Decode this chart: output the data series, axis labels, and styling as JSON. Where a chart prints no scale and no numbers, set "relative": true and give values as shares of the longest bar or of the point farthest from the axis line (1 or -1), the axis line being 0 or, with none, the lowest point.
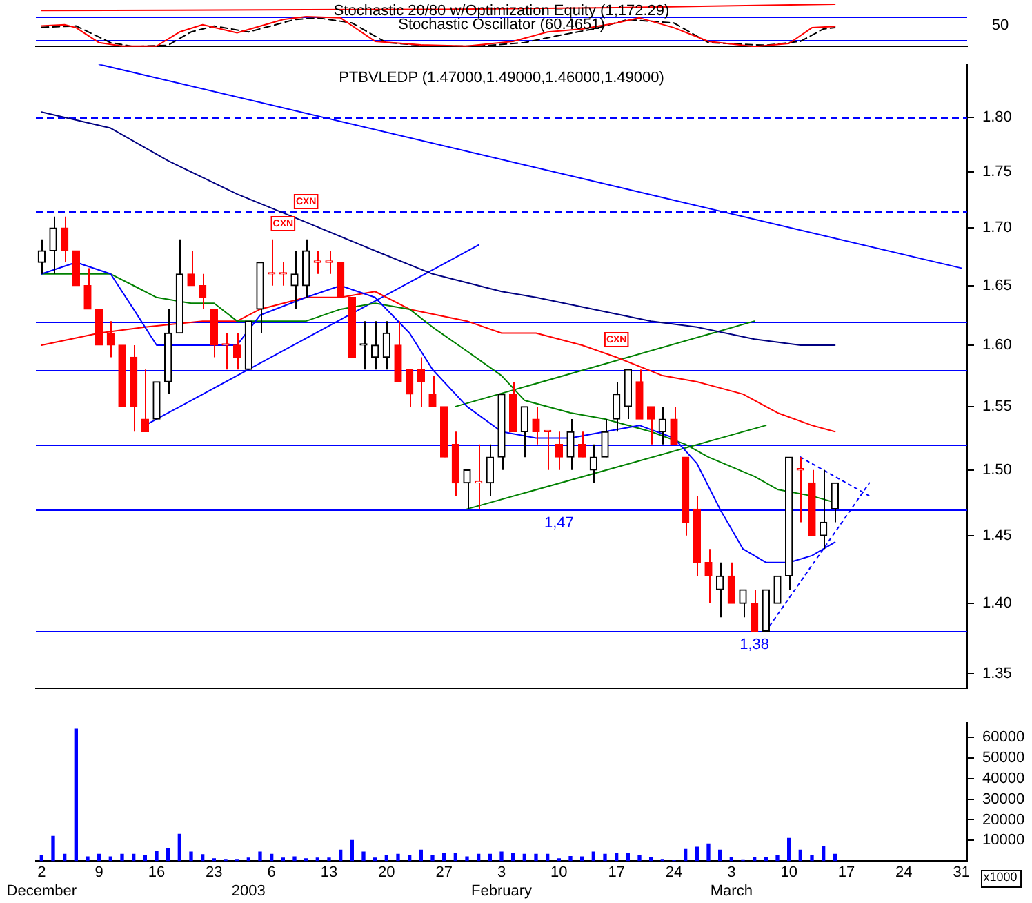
{
  "chart_data": [
    {
      "type": "line",
      "relative": true,
      "tick_labels": false,
      "title": "Stochastic 20/80 w/Optimization Equity (1,172.29)",
      "subtitle": "Stochastic Oscillator (60.4651)",
      "categories": [
        null,
        null,
        null,
        null,
        null,
        null,
        null,
        null,
        null,
        null,
        null,
        null,
        null,
        null,
        null,
        null,
        null,
        null,
        null,
        null,
        null,
        null,
        null,
        null,
        null,
        null,
        null,
        null,
        null,
        null,
        null,
        null,
        null,
        null,
        null,
        null,
        null,
        null,
        null,
        null,
        null,
        null,
        null,
        null,
        null,
        null,
        null,
        null,
        null,
        null,
        null,
        null,
        null,
        null,
        null,
        null,
        null,
        null,
        null,
        null,
        null,
        null,
        null,
        null,
        null,
        null,
        null,
        null,
        null,
        null,
        null,
        null,
        null,
        null,
        null,
        null,
        null,
        null,
        null,
        null,
        null
      ],
      "series": [
        {
          "color": "#ff0000",
          "values": [
            0.49,
            null,
            0.52,
            0.45,
            null,
            0.1,
            null,
            0.02,
            null,
            null,
            0.02,
            null,
            0.35,
            null,
            0.52,
            null,
            null,
            0.33,
            null,
            null,
            null,
            0.64,
            null,
            0.71,
            null,
            null,
            0.68,
            null,
            null,
            0.13,
            null,
            null,
            null,
            0.05,
            null,
            null,
            null,
            0.02,
            null,
            null,
            null,
            0.13,
            null,
            null,
            0.35,
            null,
            null,
            0.42,
            null,
            null,
            0.56,
            null,
            0.68,
            null,
            null,
            0.45,
            null,
            null,
            0.13,
            null,
            null,
            null,
            0.01,
            null,
            null,
            0.08,
            null,
            0.45,
            null,
            0.48,
            null,
            null,
            null,
            null,
            null,
            null,
            null,
            null,
            null,
            null,
            null
          ]
        },
        {
          "color": "#000000",
          "line_style": "dashed",
          "values": [
            0.46,
            null,
            null,
            0.49,
            null,
            null,
            0.1,
            null,
            0.01,
            null,
            null,
            0.04,
            null,
            0.35,
            null,
            0.49,
            null,
            null,
            0.35,
            null,
            null,
            null,
            0.64,
            null,
            0.68,
            null,
            null,
            0.56,
            null,
            null,
            0.1,
            null,
            null,
            null,
            0.02,
            null,
            null,
            null,
            0.02,
            null,
            null,
            null,
            0.1,
            null,
            null,
            0.27,
            null,
            null,
            0.42,
            null,
            null,
            0.64,
            null,
            null,
            null,
            0.56,
            null,
            null,
            0.1,
            null,
            null,
            null,
            null,
            0.04,
            null,
            null,
            0.13,
            null,
            0.42,
            0.45,
            null,
            null,
            null,
            null,
            null,
            null,
            null,
            null,
            null,
            null,
            null
          ]
        },
        {
          "color": "#ff0000",
          "values": [
            0.85,
            null,
            null,
            null,
            null,
            null,
            null,
            null,
            null,
            null,
            null,
            null,
            null,
            null,
            null,
            null,
            null,
            null,
            null,
            null,
            null,
            null,
            null,
            null,
            null,
            null,
            null,
            null,
            null,
            null,
            null,
            null,
            null,
            null,
            null,
            0.88,
            null,
            null,
            null,
            null,
            null,
            null,
            null,
            null,
            null,
            null,
            null,
            null,
            null,
            null,
            0.92,
            null,
            null,
            null,
            null,
            null,
            null,
            null,
            null,
            null,
            null,
            null,
            null,
            null,
            null,
            null,
            null,
            null,
            null,
            1,
            null,
            null,
            null,
            null,
            null,
            null,
            null,
            null,
            null,
            null,
            null
          ]
        }
      ],
      "ref_lines": [
        {
          "axis": "y",
          "value": 0.7,
          "color": "#0000ff"
        },
        {
          "axis": "y",
          "value": 0.15,
          "color": "#0000ff"
        }
      ],
      "annotations": [
        "50"
      ]
    },
    {
      "type": "candlestick",
      "title": "PTBVLEDP (1.47000,1.49000,1.46000,1.49000)",
      "log": true,
      "tick_labels": "y",
      "categories": [
        null,
        null,
        null,
        null,
        null,
        null,
        null,
        null,
        null,
        null,
        null,
        null,
        null,
        null,
        null,
        null,
        null,
        null,
        null,
        null,
        null,
        null,
        null,
        null,
        null,
        null,
        null,
        null,
        null,
        null,
        null,
        null,
        null,
        null,
        null,
        null,
        null,
        null,
        null,
        null,
        null,
        null,
        null,
        null,
        null,
        null,
        null,
        null,
        null,
        null,
        null,
        null,
        null,
        null,
        null,
        null,
        null,
        null,
        null,
        null,
        null,
        null,
        null,
        null,
        null,
        null,
        null,
        null,
        null,
        null,
        null,
        null,
        null,
        null,
        null,
        null,
        null,
        null,
        null,
        null,
        null
      ],
      "ohlc": [
        [
          1.67,
          1.69,
          1.66,
          1.68
        ],
        [
          1.68,
          1.71,
          1.66,
          1.7
        ],
        [
          1.7,
          1.71,
          1.67,
          1.68
        ],
        [
          1.68,
          1.68,
          1.65,
          1.65
        ],
        [
          1.65,
          1.665,
          1.63,
          1.63
        ],
        [
          1.63,
          1.63,
          1.6,
          1.6
        ],
        [
          1.61,
          1.62,
          1.59,
          1.6
        ],
        [
          1.6,
          1.6,
          1.55,
          1.55
        ],
        [
          1.59,
          1.6,
          1.53,
          1.55
        ],
        [
          1.54,
          1.58,
          1.53,
          1.53
        ],
        [
          1.54,
          1.57,
          1.54,
          1.57
        ],
        [
          1.57,
          1.63,
          1.56,
          1.61
        ],
        [
          1.61,
          1.69,
          1.61,
          1.66
        ],
        [
          1.66,
          1.68,
          1.65,
          1.65
        ],
        [
          1.65,
          1.66,
          1.63,
          1.64
        ],
        [
          1.63,
          1.63,
          1.59,
          1.6
        ],
        [
          1.6,
          1.61,
          1.58,
          1.6
        ],
        [
          1.6,
          1.61,
          1.58,
          1.59
        ],
        [
          1.58,
          1.62,
          1.58,
          1.62
        ],
        [
          1.63,
          1.67,
          1.61,
          1.67
        ],
        [
          1.66,
          1.69,
          1.65,
          1.66
        ],
        [
          1.66,
          1.67,
          1.65,
          1.66
        ],
        [
          1.65,
          1.68,
          1.63,
          1.66
        ],
        [
          1.65,
          1.69,
          1.64,
          1.68
        ],
        [
          1.67,
          1.68,
          1.66,
          1.67
        ],
        [
          1.67,
          1.68,
          1.66,
          1.67
        ],
        [
          1.67,
          1.67,
          1.64,
          1.64
        ],
        [
          1.64,
          1.64,
          1.59,
          1.59
        ],
        [
          1.6,
          1.62,
          1.58,
          1.6
        ],
        [
          1.59,
          1.62,
          1.58,
          1.6
        ],
        [
          1.59,
          1.62,
          1.58,
          1.61
        ],
        [
          1.6,
          1.62,
          1.57,
          1.57
        ],
        [
          1.58,
          1.58,
          1.55,
          1.56
        ],
        [
          1.58,
          1.59,
          1.55,
          1.57
        ],
        [
          1.56,
          1.575,
          1.55,
          1.55
        ],
        [
          1.55,
          1.55,
          1.51,
          1.51
        ],
        [
          1.52,
          1.53,
          1.48,
          1.49
        ],
        [
          1.49,
          1.5,
          1.47,
          1.5
        ],
        [
          1.49,
          1.52,
          1.47,
          1.49
        ],
        [
          1.49,
          1.52,
          1.48,
          1.51
        ],
        [
          1.51,
          1.56,
          1.5,
          1.56
        ],
        [
          1.56,
          1.57,
          1.53,
          1.53
        ],
        [
          1.53,
          1.55,
          1.51,
          1.55
        ],
        [
          1.54,
          1.55,
          1.52,
          1.53
        ],
        [
          1.53,
          1.53,
          1.5,
          1.53
        ],
        [
          1.52,
          1.53,
          1.5,
          1.51
        ],
        [
          1.51,
          1.54,
          1.5,
          1.53
        ],
        [
          1.52,
          1.53,
          1.51,
          1.51
        ],
        [
          1.5,
          1.52,
          1.49,
          1.51
        ],
        [
          1.51,
          1.54,
          1.51,
          1.53
        ],
        [
          1.54,
          1.57,
          1.53,
          1.56
        ],
        [
          1.55,
          1.58,
          1.54,
          1.58
        ],
        [
          1.57,
          1.58,
          1.54,
          1.54
        ],
        [
          1.55,
          1.55,
          1.52,
          1.54
        ],
        [
          1.53,
          1.55,
          1.52,
          1.54
        ],
        [
          1.54,
          1.55,
          1.52,
          1.52
        ],
        [
          1.51,
          1.51,
          1.45,
          1.46
        ],
        [
          1.47,
          1.48,
          1.42,
          1.43
        ],
        [
          1.43,
          1.44,
          1.4,
          1.42
        ],
        [
          1.41,
          1.43,
          1.39,
          1.42
        ],
        [
          1.42,
          1.43,
          1.4,
          1.4
        ],
        [
          1.4,
          1.41,
          1.39,
          1.41
        ],
        [
          1.4,
          1.41,
          1.38,
          1.38
        ],
        [
          1.38,
          1.41,
          1.38,
          1.41
        ],
        [
          1.4,
          1.42,
          1.4,
          1.42
        ],
        [
          1.42,
          1.51,
          1.41,
          1.51
        ],
        [
          1.5,
          1.51,
          1.46,
          1.5
        ],
        [
          1.49,
          1.5,
          1.45,
          1.45
        ],
        [
          1.45,
          1.5,
          1.44,
          1.46
        ],
        [
          1.47,
          1.49,
          1.46,
          1.49
        ],
        null,
        null,
        null,
        null,
        null,
        null,
        null,
        null,
        null,
        null,
        null
      ],
      "colors": [
        "#000000",
        "#000000",
        "#ff0000",
        "#ff0000",
        "#ff0000",
        "#ff0000",
        "#ff0000",
        "#ff0000",
        "#ff0000",
        "#ff0000",
        "#000000",
        "#000000",
        "#000000",
        "#ff0000",
        "#ff0000",
        "#ff0000",
        "#ff0000",
        "#ff0000",
        "#000000",
        "#000000",
        "#ff0000",
        "#ff0000",
        "#000000",
        "#000000",
        "#ff0000",
        "#ff0000",
        "#ff0000",
        "#ff0000",
        "#000000",
        "#000000",
        "#000000",
        "#ff0000",
        "#ff0000",
        "#ff0000",
        "#ff0000",
        "#ff0000",
        "#ff0000",
        "#000000",
        "#ff0000",
        "#000000",
        "#000000",
        "#ff0000",
        "#000000",
        "#ff0000",
        "#ff0000",
        "#ff0000",
        "#000000",
        "#ff0000",
        "#000000",
        "#000000",
        "#000000",
        "#000000",
        "#ff0000",
        "#ff0000",
        "#000000",
        "#ff0000",
        "#ff0000",
        "#ff0000",
        "#ff0000",
        "#000000",
        "#ff0000",
        "#000000",
        "#ff0000",
        "#000000",
        "#000000",
        "#000000",
        "#ff0000",
        "#ff0000",
        "#000000",
        "#000000",
        null,
        null,
        null,
        null,
        null,
        null,
        null,
        null,
        null,
        null,
        null
      ],
      "series": [
        {
          "type": "line",
          "color": "#0000ff",
          "values": [
            1.66,
            null,
            null,
            1.67,
            null,
            null,
            1.66,
            null,
            1.63,
            null,
            1.6,
            null,
            null,
            1.6,
            null,
            null,
            null,
            1.6,
            null,
            1.625,
            null,
            null,
            null,
            1.64,
            null,
            null,
            1.65,
            null,
            null,
            1.64,
            null,
            null,
            1.61,
            null,
            1.58,
            null,
            null,
            1.55,
            null,
            null,
            1.53,
            null,
            null,
            1.525,
            null,
            null,
            1.525,
            null,
            null,
            1.53,
            null,
            null,
            1.535,
            null,
            null,
            1.525,
            null,
            1.505,
            null,
            1.47,
            null,
            1.44,
            null,
            1.43,
            null,
            1.43,
            null,
            1.435,
            null,
            1.445,
            null,
            null,
            null,
            null,
            null,
            null,
            null,
            null,
            null,
            null,
            null
          ]
        },
        {
          "type": "line",
          "color": "#008000",
          "values": [
            1.66,
            null,
            null,
            1.66,
            null,
            null,
            1.66,
            null,
            1.65,
            null,
            1.64,
            null,
            null,
            1.635,
            null,
            1.635,
            null,
            1.62,
            null,
            1.62,
            null,
            null,
            null,
            1.62,
            null,
            null,
            1.63,
            null,
            null,
            1.635,
            null,
            null,
            1.63,
            null,
            1.615,
            null,
            null,
            1.595,
            null,
            null,
            1.575,
            null,
            1.555,
            null,
            null,
            null,
            1.545,
            null,
            null,
            1.54,
            null,
            null,
            null,
            1.53,
            null,
            null,
            1.52,
            null,
            1.51,
            null,
            null,
            null,
            1.495,
            null,
            1.485,
            null,
            null,
            1.48,
            null,
            1.475,
            null,
            null,
            null,
            null,
            null,
            null,
            null,
            null,
            null,
            null,
            null
          ]
        },
        {
          "type": "line",
          "color": "#ff0000",
          "values": [
            1.6,
            null,
            null,
            null,
            null,
            1.61,
            null,
            null,
            null,
            1.615,
            null,
            null,
            null,
            null,
            1.62,
            null,
            null,
            1.62,
            null,
            1.63,
            null,
            null,
            null,
            1.64,
            null,
            null,
            1.64,
            null,
            null,
            1.645,
            null,
            null,
            1.63,
            null,
            null,
            null,
            null,
            1.62,
            null,
            null,
            1.61,
            null,
            null,
            1.61,
            null,
            null,
            null,
            1.6,
            null,
            null,
            1.59,
            null,
            null,
            null,
            1.575,
            null,
            null,
            1.57,
            null,
            null,
            null,
            1.56,
            null,
            null,
            1.545,
            null,
            null,
            1.535,
            null,
            1.53,
            null,
            null,
            null,
            null,
            null,
            null,
            null,
            null,
            null,
            null,
            null
          ]
        },
        {
          "type": "line",
          "color": "#000080",
          "values": [
            1.805,
            null,
            null,
            null,
            null,
            null,
            1.79,
            null,
            null,
            null,
            null,
            1.76,
            null,
            null,
            null,
            null,
            null,
            1.73,
            null,
            null,
            null,
            null,
            null,
            1.705,
            null,
            null,
            null,
            null,
            null,
            1.68,
            null,
            null,
            null,
            null,
            1.66,
            null,
            null,
            null,
            null,
            null,
            1.645,
            null,
            null,
            1.64,
            null,
            null,
            null,
            null,
            1.63,
            null,
            null,
            null,
            null,
            1.62,
            null,
            null,
            null,
            1.615,
            null,
            null,
            null,
            null,
            1.605,
            null,
            null,
            null,
            1.6,
            null,
            null,
            1.6,
            null,
            null,
            null,
            null,
            null,
            null,
            null,
            null,
            null,
            null,
            null
          ]
        },
        {
          "type": "line",
          "color": "#0000ff",
          "values": [
            null,
            null,
            null,
            null,
            null,
            1.85,
            null,
            null,
            null,
            null,
            null,
            null,
            null,
            null,
            null,
            null,
            null,
            null,
            null,
            null,
            null,
            null,
            null,
            null,
            null,
            null,
            null,
            null,
            null,
            null,
            null,
            null,
            null,
            null,
            null,
            null,
            null,
            null,
            null,
            null,
            null,
            null,
            null,
            null,
            null,
            null,
            null,
            null,
            null,
            null,
            null,
            null,
            null,
            null,
            null,
            null,
            null,
            null,
            null,
            null,
            null,
            null,
            null,
            null,
            null,
            null,
            null,
            null,
            null,
            null,
            null,
            null,
            null,
            null,
            null,
            null,
            null,
            null,
            null,
            null,
            1.665
          ]
        },
        {
          "type": "line",
          "color": "#0000ff",
          "values": [
            null,
            null,
            null,
            null,
            null,
            null,
            null,
            null,
            null,
            1.535,
            null,
            null,
            null,
            null,
            null,
            null,
            null,
            null,
            null,
            null,
            null,
            null,
            null,
            null,
            null,
            null,
            null,
            null,
            null,
            null,
            null,
            null,
            null,
            null,
            null,
            null,
            null,
            null,
            1.685,
            null,
            null,
            null,
            null,
            null,
            null,
            null,
            null,
            null,
            null,
            null,
            null,
            null,
            null,
            null,
            null,
            null,
            null,
            null,
            null,
            null,
            null,
            null,
            null,
            null,
            null,
            null,
            null,
            null,
            null,
            null,
            null,
            null,
            null,
            null,
            null,
            null,
            null,
            null,
            null,
            null,
            null
          ]
        },
        {
          "type": "line",
          "color": "#008000",
          "values": [
            null,
            null,
            null,
            null,
            null,
            null,
            null,
            null,
            null,
            null,
            null,
            null,
            null,
            null,
            null,
            null,
            null,
            null,
            null,
            null,
            null,
            null,
            null,
            null,
            null,
            null,
            null,
            null,
            null,
            null,
            null,
            null,
            null,
            null,
            null,
            null,
            1.55,
            null,
            null,
            null,
            null,
            null,
            null,
            null,
            null,
            null,
            null,
            null,
            null,
            null,
            null,
            null,
            null,
            null,
            null,
            null,
            null,
            null,
            null,
            null,
            null,
            null,
            1.62,
            null,
            null,
            null,
            null,
            null,
            null,
            null,
            null,
            null,
            null,
            null,
            null,
            null,
            null,
            null,
            null,
            null,
            null
          ]
        },
        {
          "type": "line",
          "color": "#008000",
          "values": [
            null,
            null,
            null,
            null,
            null,
            null,
            null,
            null,
            null,
            null,
            null,
            null,
            null,
            null,
            null,
            null,
            null,
            null,
            null,
            null,
            null,
            null,
            null,
            null,
            null,
            null,
            null,
            null,
            null,
            null,
            null,
            null,
            null,
            null,
            null,
            null,
            null,
            1.47,
            null,
            null,
            null,
            null,
            null,
            null,
            null,
            null,
            null,
            null,
            null,
            null,
            null,
            null,
            null,
            null,
            null,
            null,
            null,
            null,
            null,
            null,
            null,
            null,
            null,
            1.535,
            null,
            null,
            null,
            null,
            null,
            null,
            null,
            null,
            null,
            null,
            null,
            null,
            null,
            null,
            null,
            null,
            null
          ]
        },
        {
          "type": "line",
          "color": "#0000ff",
          "line_style": "dotted",
          "values": [
            null,
            null,
            null,
            null,
            null,
            null,
            null,
            null,
            null,
            null,
            null,
            null,
            null,
            null,
            null,
            null,
            null,
            null,
            null,
            null,
            null,
            null,
            null,
            null,
            null,
            null,
            null,
            null,
            null,
            null,
            null,
            null,
            null,
            null,
            null,
            null,
            null,
            null,
            null,
            null,
            null,
            null,
            null,
            null,
            null,
            null,
            null,
            null,
            null,
            null,
            null,
            null,
            null,
            null,
            null,
            null,
            null,
            null,
            null,
            null,
            null,
            null,
            null,
            1.38,
            null,
            null,
            null,
            null,
            null,
            null,
            null,
            null,
            1.49,
            null,
            null,
            null,
            null,
            null,
            null,
            null,
            null
          ]
        },
        {
          "type": "line",
          "color": "#0000ff",
          "line_style": "dotted",
          "values": [
            null,
            null,
            null,
            null,
            null,
            null,
            null,
            null,
            null,
            null,
            null,
            null,
            null,
            null,
            null,
            null,
            null,
            null,
            null,
            null,
            null,
            null,
            null,
            null,
            null,
            null,
            null,
            null,
            null,
            null,
            null,
            null,
            null,
            null,
            null,
            null,
            null,
            null,
            null,
            null,
            null,
            null,
            null,
            null,
            null,
            null,
            null,
            null,
            null,
            null,
            null,
            null,
            null,
            null,
            null,
            null,
            null,
            null,
            null,
            null,
            null,
            null,
            null,
            null,
            null,
            null,
            1.51,
            null,
            null,
            null,
            null,
            null,
            1.48,
            null,
            null,
            null,
            null,
            null,
            null,
            null,
            null
          ]
        }
      ],
      "ylim": [
        1.34,
        1.85
      ],
      "yticks": [
        {
          "value": 1.35,
          "label": "1.35"
        },
        {
          "value": 1.4,
          "label": "1.40"
        },
        {
          "value": 1.45,
          "label": "1.45"
        },
        {
          "value": 1.5,
          "label": "1.50"
        },
        {
          "value": 1.55,
          "label": "1.55"
        },
        {
          "value": 1.6,
          "label": "1.60"
        },
        {
          "value": 1.65,
          "label": "1.65"
        },
        {
          "value": 1.7,
          "label": "1.70"
        },
        {
          "value": 1.75,
          "label": "1.75"
        },
        {
          "value": 1.8,
          "label": "1.80"
        }
      ],
      "ref_lines": [
        {
          "axis": "y",
          "value": 1.8,
          "color": "#0000ff",
          "line_style": "dashed"
        },
        {
          "axis": "y",
          "value": 1.715,
          "color": "#0000ff",
          "line_style": "dashed"
        },
        {
          "axis": "y",
          "value": 1.62,
          "color": "#0000ff"
        },
        {
          "axis": "y",
          "value": 1.58,
          "color": "#0000ff"
        },
        {
          "axis": "y",
          "value": 1.52,
          "color": "#0000ff"
        },
        {
          "axis": "y",
          "value": 1.47,
          "color": "#0000ff",
          "label": "1,47"
        },
        {
          "axis": "y",
          "value": 1.38,
          "color": "#0000ff",
          "label": "1,38"
        }
      ],
      "annotations": [
        "CXN",
        "CXN",
        "CXN"
      ]
    },
    {
      "type": "bar",
      "color": "#0000ff",
      "categories": [
        "2\nDecember",
        null,
        null,
        null,
        null,
        "9",
        null,
        null,
        null,
        null,
        "16",
        null,
        null,
        null,
        null,
        "23",
        null,
        null,
        "\n2003",
        null,
        "6",
        null,
        null,
        null,
        null,
        "13",
        null,
        null,
        null,
        null,
        "20",
        null,
        null,
        null,
        null,
        "27",
        null,
        null,
        null,
        null,
        "3\nFebruary",
        null,
        null,
        null,
        null,
        "10",
        null,
        null,
        null,
        null,
        "17",
        null,
        null,
        null,
        null,
        "24",
        null,
        null,
        null,
        null,
        "3\nMarch",
        null,
        null,
        null,
        null,
        "10",
        null,
        null,
        null,
        null,
        "17",
        null,
        null,
        null,
        null,
        "24",
        null,
        null,
        null,
        null,
        "31"
      ],
      "values": [
        2500,
        12000,
        3300,
        64000,
        2000,
        3300,
        2000,
        3300,
        3300,
        2500,
        4700,
        6100,
        13000,
        4400,
        3100,
        1100,
        800,
        800,
        1400,
        4400,
        3300,
        1400,
        2000,
        1100,
        1400,
        1400,
        5300,
        10000,
        4400,
        1400,
        2500,
        3300,
        2500,
        5300,
        2500,
        3900,
        3900,
        2000,
        3300,
        3300,
        4400,
        3600,
        3300,
        3300,
        3300,
        1100,
        2200,
        2000,
        4400,
        3300,
        3900,
        3900,
        2800,
        1700,
        800,
        500,
        5600,
        6700,
        8300,
        5300,
        1700,
        600,
        1700,
        1700,
        2500,
        11000,
        5300,
        2500,
        7200,
        3300,
        null,
        null,
        null,
        null,
        null,
        null,
        null,
        null,
        null,
        null,
        null
      ],
      "ylim": [
        0,
        67000
      ],
      "yticks": [
        10000,
        20000,
        30000,
        40000,
        50000,
        60000
      ],
      "annotations": [
        "x1000"
      ]
    }
  ]
}
